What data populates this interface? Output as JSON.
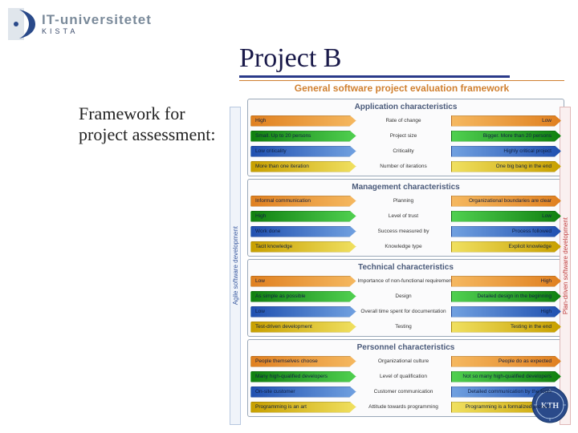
{
  "logo": {
    "main": "IT-universitetet",
    "sub": "KISTA"
  },
  "page_title": "Project B",
  "framework_subtitle": "General software project evaluation framework",
  "left_text": "Framework for project assessment:",
  "left_strip_label": "Agile software development",
  "right_strip_label": "Plan-driven software development",
  "colors": {
    "orange1": "#e08020",
    "orange2": "#f5b860",
    "green1": "#108010",
    "green2": "#50d050",
    "blue1": "#2050b0",
    "blue2": "#70a0e0",
    "yellow1": "#c8a000",
    "yellow2": "#f0e060"
  },
  "sections": [
    {
      "title": "Application characteristics",
      "rows": [
        {
          "left": "High",
          "center": "Rate of change",
          "right": "Low",
          "style": "orange"
        },
        {
          "left": "Small. Up to 20 persons",
          "center": "Project size",
          "right": "Bigger. More than 20 persons",
          "style": "green"
        },
        {
          "left": "Low criticality",
          "center": "Criticality",
          "right": "Highly critical project",
          "style": "blue"
        },
        {
          "left": "More than one iteration",
          "center": "Number of iterations",
          "right": "One big bang in the end",
          "style": "yellow"
        }
      ]
    },
    {
      "title": "Management characteristics",
      "rows": [
        {
          "left": "Informal communication",
          "center": "Planning",
          "right": "Organizational boundaries are clear",
          "style": "orange"
        },
        {
          "left": "High",
          "center": "Level of trust",
          "right": "Low",
          "style": "green"
        },
        {
          "left": "Work done",
          "center": "Success measured by",
          "right": "Process followed",
          "style": "blue"
        },
        {
          "left": "Tacit knowledge",
          "center": "Knowledge type",
          "right": "Explicit knowledge",
          "style": "yellow"
        }
      ]
    },
    {
      "title": "Technical characteristics",
      "rows": [
        {
          "left": "Low",
          "center": "Importance of non-functional requirements",
          "right": "High",
          "style": "orange"
        },
        {
          "left": "As simple as possible",
          "center": "Design",
          "right": "Detailed design in the beginning",
          "style": "green"
        },
        {
          "left": "Low",
          "center": "Overall time spent for documentation",
          "right": "High",
          "style": "blue"
        },
        {
          "left": "Test-driven development",
          "center": "Testing",
          "right": "Testing in the end",
          "style": "yellow"
        }
      ]
    },
    {
      "title": "Personnel characteristics",
      "rows": [
        {
          "left": "People themselves choose",
          "center": "Organizational culture",
          "right": "People do as expected",
          "style": "orange"
        },
        {
          "left": "Many high-qualified developers",
          "center": "Level of qualification",
          "right": "Not so many high-qualified developers",
          "style": "green"
        },
        {
          "left": "On-site customer",
          "center": "Customer communication",
          "right": "Detailed communication by the tools",
          "style": "blue"
        },
        {
          "left": "Programming is an art",
          "center": "Attitude towards programming",
          "right": "Programming is a formalized process",
          "style": "yellow"
        }
      ]
    }
  ]
}
